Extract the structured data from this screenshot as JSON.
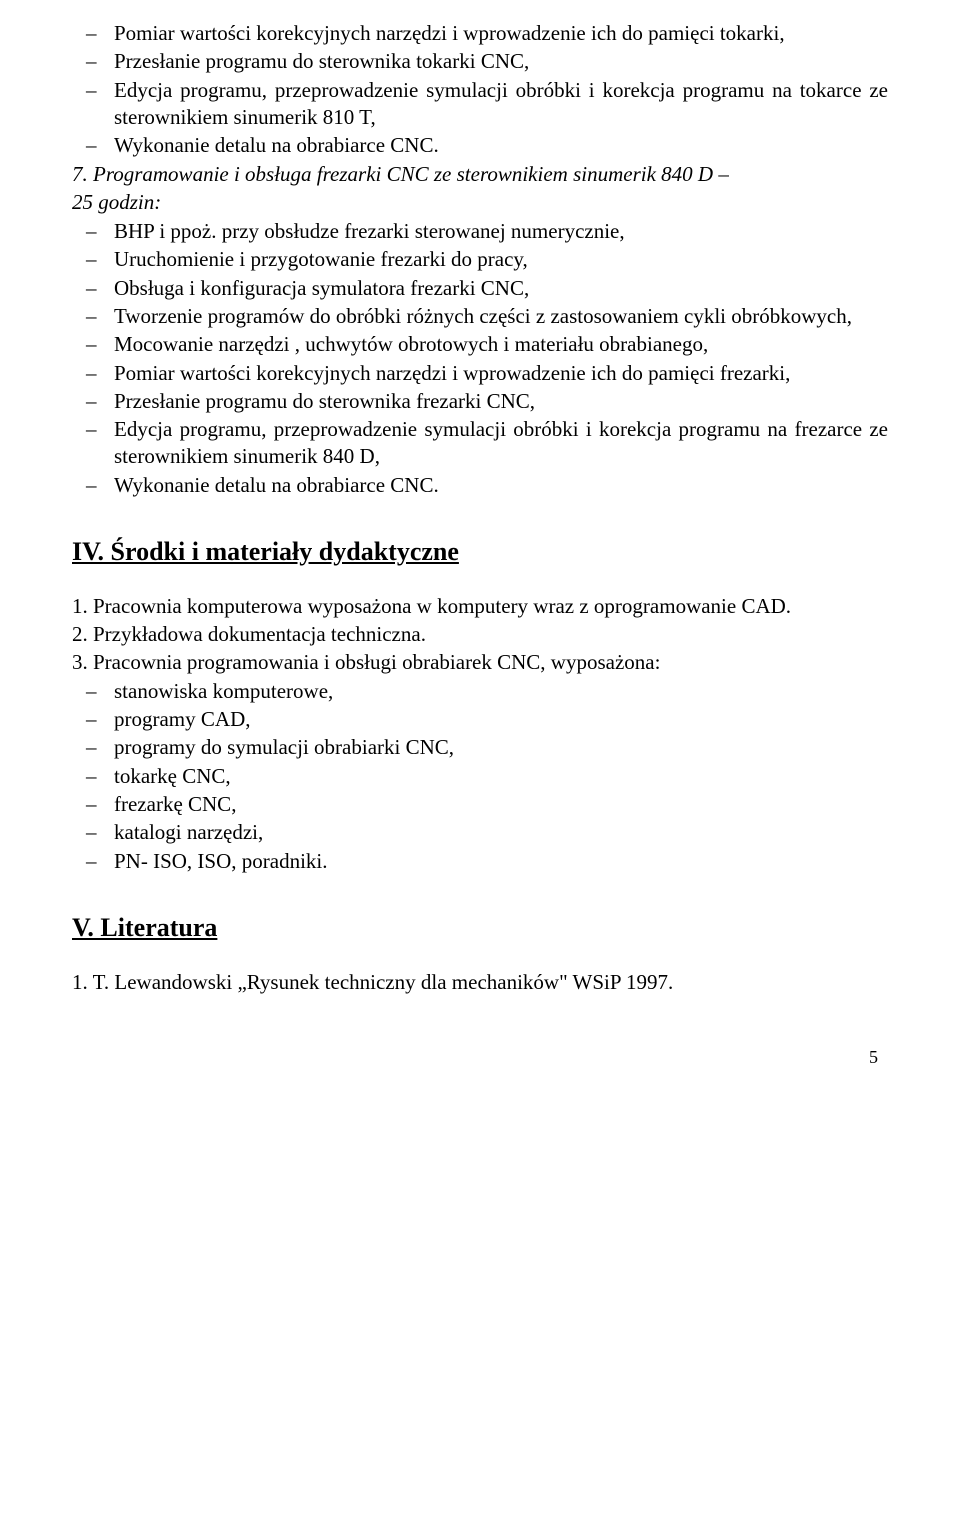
{
  "section1": {
    "items": [
      "Pomiar wartości korekcyjnych narzędzi i wprowadzenie ich do pamięci tokarki,",
      "Przesłanie programu do sterownika tokarki CNC,",
      "Edycja programu, przeprowadzenie symulacji obróbki i korekcja programu na tokarce ze sterownikiem sinumerik 810 T,",
      "Wykonanie detalu na obrabiarce CNC."
    ]
  },
  "section2": {
    "heading_line1": "7. Programowanie i obsługa frezarki CNC ze sterownikiem sinumerik 840 D –",
    "heading_line2": "25  godzin:",
    "items": [
      "BHP i ppoż. przy obsłudze frezarki sterowanej numerycznie,",
      "Uruchomienie i przygotowanie frezarki do pracy,",
      "Obsługa i konfiguracja symulatora frezarki CNC,",
      "Tworzenie programów do obróbki różnych części z zastosowaniem cykli obróbkowych,",
      "Mocowanie narzędzi , uchwytów obrotowych i materiału obrabianego,",
      "Pomiar wartości korekcyjnych narzędzi i wprowadzenie ich do pamięci frezarki,",
      "Przesłanie programu do sterownika frezarki CNC,",
      "Edycja programu, przeprowadzenie symulacji obróbki i korekcja programu na frezarce ze sterownikiem sinumerik 840 D,",
      "Wykonanie detalu na obrabiarce CNC."
    ]
  },
  "sectionIV": {
    "heading": "IV. Środki i materiały dydaktyczne",
    "numbered": [
      "1. Pracownia komputerowa wyposażona w komputery wraz z oprogramowanie CAD.",
      "2. Przykładowa dokumentacja techniczna.",
      "3. Pracownia programowania i obsługi obrabiarek CNC, wyposażona:"
    ],
    "sub_items": [
      "stanowiska komputerowe,",
      "programy CAD,",
      "programy do symulacji obrabiarki CNC,",
      "tokarkę CNC,",
      "frezarkę CNC,",
      "katalogi narzędzi,",
      "PN- ISO, ISO, poradniki."
    ]
  },
  "sectionV": {
    "heading": "V. Literatura",
    "items": [
      "1.      T. Lewandowski „Rysunek techniczny dla mechaników\" WSiP 1997."
    ]
  },
  "page_number": "5"
}
